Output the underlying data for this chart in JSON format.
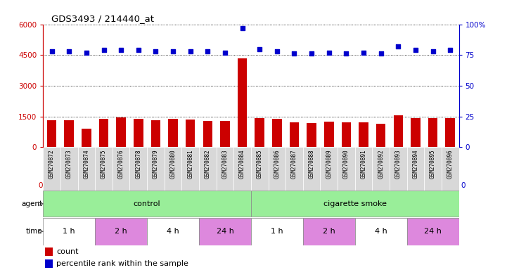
{
  "title": "GDS3493 / 214440_at",
  "samples": [
    "GSM270872",
    "GSM270873",
    "GSM270874",
    "GSM270875",
    "GSM270876",
    "GSM270878",
    "GSM270879",
    "GSM270880",
    "GSM270881",
    "GSM270882",
    "GSM270883",
    "GSM270884",
    "GSM270885",
    "GSM270886",
    "GSM270887",
    "GSM270888",
    "GSM270889",
    "GSM270890",
    "GSM270891",
    "GSM270892",
    "GSM270893",
    "GSM270894",
    "GSM270895",
    "GSM270896"
  ],
  "counts": [
    1320,
    1310,
    900,
    1380,
    1460,
    1390,
    1330,
    1380,
    1350,
    1290,
    1280,
    4350,
    1430,
    1380,
    1200,
    1170,
    1230,
    1200,
    1200,
    1160,
    1560,
    1430,
    1430,
    1420
  ],
  "percentiles": [
    78,
    78,
    77,
    79,
    79,
    79,
    78,
    78,
    78,
    78,
    77,
    97,
    80,
    78,
    76,
    76,
    77,
    76,
    77,
    76,
    82,
    79,
    78,
    79
  ],
  "bar_color": "#cc0000",
  "dot_color": "#0000cc",
  "ylim_left": [
    0,
    6000
  ],
  "ylim_right": [
    0,
    100
  ],
  "yticks_left": [
    0,
    1500,
    3000,
    4500,
    6000
  ],
  "yticks_right": [
    0,
    25,
    50,
    75,
    100
  ],
  "agent_groups": [
    {
      "label": "control",
      "start": 0,
      "end": 11,
      "color": "#99ee99"
    },
    {
      "label": "cigarette smoke",
      "start": 12,
      "end": 23,
      "color": "#99ee99"
    }
  ],
  "time_groups": [
    {
      "label": "1 h",
      "start": 0,
      "end": 2,
      "color": "#ffffff"
    },
    {
      "label": "2 h",
      "start": 3,
      "end": 5,
      "color": "#dd88dd"
    },
    {
      "label": "4 h",
      "start": 6,
      "end": 8,
      "color": "#ffffff"
    },
    {
      "label": "24 h",
      "start": 9,
      "end": 11,
      "color": "#dd88dd"
    },
    {
      "label": "1 h",
      "start": 12,
      "end": 14,
      "color": "#ffffff"
    },
    {
      "label": "2 h",
      "start": 15,
      "end": 17,
      "color": "#dd88dd"
    },
    {
      "label": "4 h",
      "start": 18,
      "end": 20,
      "color": "#ffffff"
    },
    {
      "label": "24 h",
      "start": 21,
      "end": 23,
      "color": "#dd88dd"
    }
  ]
}
